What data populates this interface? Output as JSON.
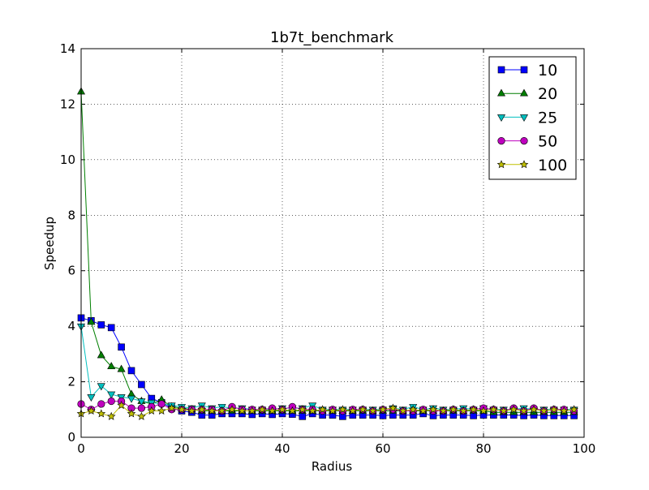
{
  "chart_data": {
    "type": "line",
    "title": "1b7t_benchmark",
    "xlabel": "Radius",
    "ylabel": "Speedup",
    "xlim": [
      0,
      100
    ],
    "ylim": [
      0,
      14
    ],
    "x_ticks": [
      0,
      20,
      40,
      60,
      80,
      100
    ],
    "x_tick_labels": [
      "0",
      "20",
      "40",
      "60",
      "80",
      "100"
    ],
    "y_ticks": [
      0,
      2,
      4,
      6,
      8,
      10,
      12,
      14
    ],
    "y_tick_labels": [
      "0",
      "2",
      "4",
      "6",
      "8",
      "10",
      "12",
      "14"
    ],
    "grid": true,
    "legend_position": "top-right",
    "x": [
      0,
      2,
      4,
      6,
      8,
      10,
      12,
      14,
      16,
      18,
      20,
      22,
      24,
      26,
      28,
      30,
      32,
      34,
      36,
      38,
      40,
      42,
      44,
      46,
      48,
      50,
      52,
      54,
      56,
      58,
      60,
      62,
      64,
      66,
      68,
      70,
      72,
      74,
      76,
      78,
      80,
      82,
      84,
      86,
      88,
      90,
      92,
      94,
      96,
      98
    ],
    "series": [
      {
        "name": "10",
        "color": "#0000ff",
        "marker": "square",
        "values": [
          4.3,
          4.2,
          4.05,
          3.95,
          3.25,
          2.4,
          1.9,
          1.4,
          1.25,
          1.05,
          0.95,
          0.9,
          0.8,
          0.8,
          0.85,
          0.85,
          0.85,
          0.82,
          0.85,
          0.82,
          0.85,
          0.83,
          0.75,
          0.85,
          0.8,
          0.8,
          0.75,
          0.8,
          0.8,
          0.8,
          0.78,
          0.8,
          0.8,
          0.8,
          0.85,
          0.78,
          0.8,
          0.8,
          0.8,
          0.78,
          0.8,
          0.8,
          0.8,
          0.8,
          0.78,
          0.8,
          0.78,
          0.78,
          0.78,
          0.78
        ]
      },
      {
        "name": "20",
        "color": "#007f00",
        "marker": "triangle-up",
        "values": [
          12.45,
          4.15,
          2.95,
          2.55,
          2.45,
          1.55,
          1.3,
          1.2,
          1.35,
          1.1,
          1.05,
          1.0,
          0.95,
          0.95,
          0.95,
          0.95,
          0.95,
          0.95,
          0.95,
          0.95,
          0.95,
          0.95,
          0.95,
          0.95,
          0.95,
          0.95,
          0.95,
          0.95,
          0.95,
          0.95,
          0.95,
          0.95,
          0.95,
          0.95,
          0.95,
          0.95,
          0.95,
          0.95,
          0.95,
          0.95,
          0.95,
          0.9,
          0.9,
          0.9,
          0.9,
          0.9,
          0.9,
          0.9,
          0.9,
          0.9
        ]
      },
      {
        "name": "25",
        "color": "#00bfbf",
        "marker": "triangle-down",
        "values": [
          4.0,
          1.45,
          1.85,
          1.55,
          1.45,
          1.4,
          1.3,
          1.25,
          1.2,
          1.15,
          1.1,
          1.05,
          1.15,
          1.05,
          1.1,
          1.05,
          1.05,
          1.0,
          1.0,
          1.0,
          1.05,
          1.05,
          1.05,
          1.15,
          1.0,
          1.0,
          1.0,
          1.0,
          1.0,
          1.0,
          1.0,
          1.05,
          1.0,
          1.1,
          1.0,
          1.05,
          1.0,
          1.0,
          1.05,
          1.0,
          1.05,
          1.0,
          1.0,
          1.0,
          1.05,
          1.0,
          1.0,
          1.0,
          1.0,
          1.0
        ]
      },
      {
        "name": "50",
        "color": "#bf00bf",
        "marker": "circle",
        "values": [
          1.2,
          1.0,
          1.2,
          1.3,
          1.3,
          1.05,
          1.05,
          1.1,
          1.2,
          1.0,
          1.0,
          1.0,
          1.0,
          1.0,
          0.95,
          1.1,
          1.0,
          1.0,
          1.0,
          1.05,
          1.0,
          1.1,
          1.0,
          1.0,
          0.95,
          1.0,
          0.95,
          1.0,
          1.0,
          0.95,
          1.0,
          1.0,
          0.95,
          0.95,
          1.0,
          0.95,
          0.95,
          1.0,
          0.95,
          1.0,
          1.05,
          1.0,
          0.95,
          1.05,
          0.95,
          1.05,
          0.95,
          1.0,
          1.0,
          0.95
        ]
      },
      {
        "name": "100",
        "color": "#bfbf00",
        "marker": "star",
        "values": [
          0.85,
          0.95,
          0.85,
          0.75,
          1.15,
          0.85,
          0.75,
          0.95,
          0.95,
          1.05,
          1.0,
          0.95,
          1.0,
          0.95,
          0.95,
          1.0,
          0.95,
          0.95,
          1.0,
          0.95,
          1.0,
          0.95,
          1.0,
          0.95,
          1.0,
          0.95,
          1.0,
          0.95,
          1.0,
          0.95,
          1.0,
          1.05,
          0.95,
          1.0,
          0.95,
          1.0,
          0.95,
          1.0,
          0.95,
          1.0,
          0.95,
          1.0,
          0.95,
          1.0,
          0.95,
          1.0,
          0.95,
          1.0,
          0.95,
          1.0
        ]
      }
    ]
  }
}
